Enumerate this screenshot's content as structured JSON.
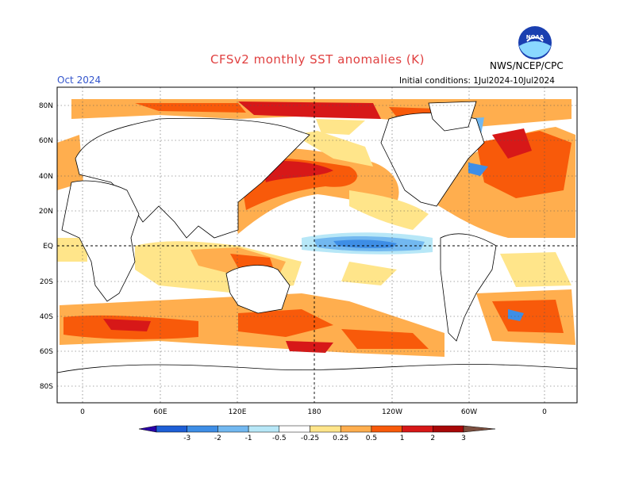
{
  "title": "CFSv2 monthly SST anomalies (K)",
  "valid_month": "Oct 2024",
  "initial_conditions": "Initial conditions: 1Jul2024-10Jul2024",
  "organization": "NWS/NCEP/CPC",
  "logo_text": "NOAA",
  "lat_labels": [
    "80N",
    "60N",
    "40N",
    "20N",
    "EQ",
    "20S",
    "40S",
    "60S",
    "80S"
  ],
  "lon_labels": [
    "0",
    "60E",
    "120E",
    "180",
    "120W",
    "60W",
    "0"
  ],
  "colorbar": {
    "labels": [
      "-3",
      "-2",
      "-1",
      "-0.5",
      "-0.25",
      "0.25",
      "0.5",
      "1",
      "2",
      "3"
    ],
    "colors": [
      "#2a00a8",
      "#1e5fd6",
      "#3e8ee6",
      "#72b8f0",
      "#b7e7f7",
      "#ffffff",
      "#ffe58a",
      "#ffae4e",
      "#f85a0a",
      "#d71818",
      "#a80808",
      "#7d5040"
    ]
  }
}
